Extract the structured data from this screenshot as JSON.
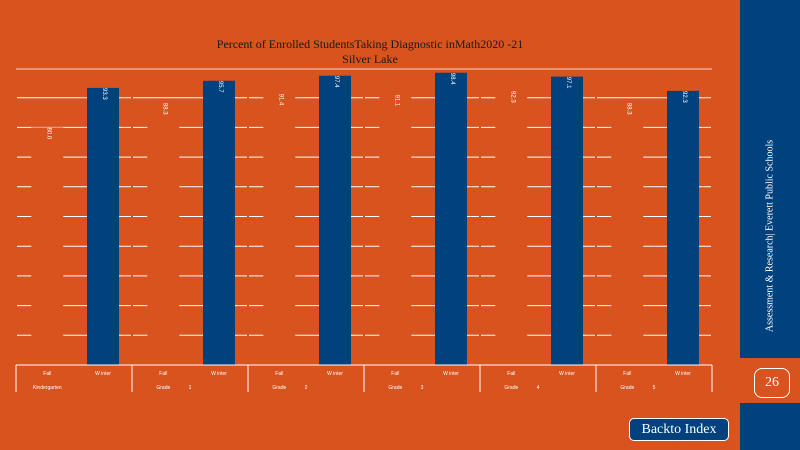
{
  "chart_data": {
    "type": "bar",
    "title": "Percent of Enrolled StudentsTaking Diagnostic inMath2020 -21",
    "subtitle": "Silver Lake",
    "groups": [
      {
        "label": "Kindergarten",
        "grade_num": ""
      },
      {
        "label": "Grade",
        "grade_num": "1"
      },
      {
        "label": "Grade",
        "grade_num": "2"
      },
      {
        "label": "Grade",
        "grade_num": "3"
      },
      {
        "label": "Grade",
        "grade_num": "4"
      },
      {
        "label": "Grade",
        "grade_num": "5"
      }
    ],
    "x_labels": [
      "Fall",
      "W inter"
    ],
    "series": [
      {
        "key": "fall",
        "values": [
          80.0,
          88.3,
          91.4,
          91.1,
          92.3,
          88.3
        ],
        "labels": [
          "80.0",
          "88.3",
          "91.4",
          "91.1",
          "92.3",
          "88.3"
        ]
      },
      {
        "key": "winter",
        "values": [
          93.3,
          95.7,
          97.4,
          98.4,
          97.1,
          92.3
        ],
        "labels": [
          "93.3",
          "95.7",
          "97.4",
          "98.4",
          "97.1",
          "92.3"
        ]
      }
    ],
    "ylim": [
      0,
      100
    ],
    "grid": true,
    "colors": {
      "fall": "#d9531e",
      "winter": "#00417e",
      "grid": "#ffffff"
    }
  },
  "sidebar": {
    "text": "Assessment & Research|  Everett Public Schools",
    "page_number": "26"
  },
  "nav": {
    "back_label": "Backto Index"
  }
}
